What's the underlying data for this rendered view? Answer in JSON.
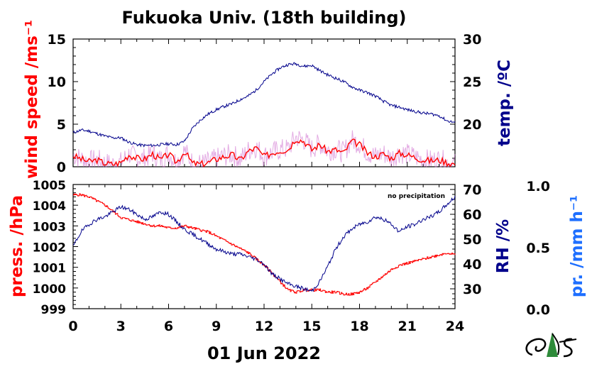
{
  "title": "Fukuoka Univ. (18th building)",
  "date_label": "01 Jun 2022",
  "note": "no precipitation",
  "colors": {
    "wind": "#ff0000",
    "wind_raw": "#cc66cc",
    "temp": "#00008b",
    "press": "#ff0000",
    "rh": "#00008b",
    "precip": "#1e6fff",
    "logo_green": "#2e8b3a"
  },
  "chart_data": [
    {
      "type": "line",
      "panel": "top",
      "x_ticks": [
        "0",
        "3",
        "6",
        "9",
        "12",
        "15",
        "18",
        "21",
        "24"
      ],
      "xlim": [
        0,
        24
      ],
      "left_axis": {
        "label": "wind speed /ms⁻¹",
        "ylim": [
          0,
          15
        ],
        "ticks": [
          "0",
          "5",
          "10",
          "15"
        ]
      },
      "right_axis": {
        "label": "temp. /ºC",
        "ylim": [
          15,
          30
        ],
        "ticks": [
          "20",
          "25",
          "30"
        ]
      },
      "series": [
        {
          "axis": "left",
          "color": "#ff0000",
          "x": [
            0,
            0.5,
            1,
            1.5,
            2,
            2.5,
            3,
            3.5,
            4,
            4.5,
            5,
            5.5,
            6,
            6.5,
            7,
            7.5,
            8,
            8.5,
            9,
            9.5,
            10,
            10.5,
            11,
            11.5,
            12,
            12.5,
            13,
            13.5,
            14,
            14.5,
            15,
            15.5,
            16,
            16.5,
            17,
            17.5,
            18,
            18.5,
            19,
            19.5,
            20,
            20.5,
            21,
            21.5,
            22,
            22.5,
            23,
            23.5,
            24
          ],
          "values": [
            1.3,
            0.9,
            0.6,
            0.8,
            0.4,
            0.3,
            0.5,
            1.4,
            1.0,
            0.9,
            1.5,
            0.8,
            1.5,
            0.5,
            1.8,
            0.4,
            0.3,
            0.5,
            0.9,
            1.2,
            1.4,
            0.8,
            1.8,
            2.2,
            1.2,
            1.6,
            1.9,
            2.0,
            3.3,
            3.0,
            2.0,
            2.6,
            1.8,
            2.0,
            1.6,
            3.0,
            2.6,
            1.6,
            1.2,
            1.5,
            1.0,
            1.6,
            1.4,
            1.1,
            0.8,
            0.7,
            0.8,
            0.5,
            0.3
          ]
        },
        {
          "axis": "right",
          "color": "#00008b",
          "x": [
            0,
            0.5,
            1,
            1.5,
            2,
            2.5,
            3,
            3.5,
            4,
            4.5,
            5,
            5.5,
            6,
            6.5,
            7,
            7.5,
            8,
            8.5,
            9,
            9.5,
            10,
            10.5,
            11,
            11.5,
            12,
            12.5,
            13,
            13.5,
            14,
            14.5,
            15,
            15.5,
            16,
            16.5,
            17,
            17.5,
            18,
            18.5,
            19,
            19.5,
            20,
            20.5,
            21,
            21.5,
            22,
            22.5,
            23,
            23.5,
            24
          ],
          "values": [
            19.0,
            19.3,
            19.2,
            18.9,
            18.6,
            18.4,
            18.4,
            17.9,
            17.6,
            17.5,
            17.5,
            17.6,
            17.7,
            17.6,
            18.0,
            19.5,
            20.5,
            21.2,
            21.7,
            22.1,
            22.4,
            22.9,
            23.3,
            24.0,
            25.0,
            25.9,
            26.6,
            27.0,
            27.1,
            26.8,
            26.9,
            26.3,
            25.8,
            25.4,
            25.0,
            24.4,
            24.0,
            23.7,
            23.3,
            22.7,
            22.2,
            22.0,
            21.7,
            21.5,
            21.3,
            21.2,
            21.0,
            20.4,
            20.2
          ]
        }
      ]
    },
    {
      "type": "line",
      "panel": "bottom",
      "x_ticks": [
        "0",
        "3",
        "6",
        "9",
        "12",
        "15",
        "18",
        "21",
        "24"
      ],
      "xlim": [
        0,
        24
      ],
      "left_axis": {
        "label": "press. /hPa",
        "ylim": [
          999,
          1005
        ],
        "ticks": [
          "999",
          "1000",
          "1001",
          "1002",
          "1003",
          "1004",
          "1005"
        ]
      },
      "right_axis": {
        "label": "RH /%",
        "ylim": [
          22,
          72
        ],
        "ticks": [
          "30",
          "40",
          "50",
          "60",
          "70"
        ]
      },
      "extra_axis": {
        "label": "pr. /mm h⁻¹",
        "ylim": [
          0,
          1
        ],
        "ticks": [
          "0.0",
          "0.5",
          "1.0"
        ]
      },
      "series": [
        {
          "axis": "left",
          "color": "#ff0000",
          "x": [
            0,
            0.5,
            1,
            1.5,
            2,
            2.5,
            3,
            3.5,
            4,
            4.5,
            5,
            5.5,
            6,
            6.5,
            7,
            7.5,
            8,
            8.5,
            9,
            9.5,
            10,
            10.5,
            11,
            11.5,
            12,
            12.5,
            13,
            13.5,
            14,
            14.5,
            15,
            15.5,
            16,
            16.5,
            17,
            17.5,
            18,
            18.5,
            19,
            19.5,
            20,
            20.5,
            21,
            21.5,
            22,
            22.5,
            23,
            23.5,
            24
          ],
          "values": [
            1004.5,
            1004.5,
            1004.4,
            1004.2,
            1004.0,
            1003.7,
            1003.4,
            1003.3,
            1003.2,
            1003.1,
            1003.0,
            1003.0,
            1002.9,
            1002.9,
            1003.0,
            1002.9,
            1002.8,
            1002.7,
            1002.5,
            1002.3,
            1002.1,
            1001.9,
            1001.7,
            1001.4,
            1001.1,
            1000.7,
            1000.3,
            999.9,
            999.8,
            999.9,
            999.9,
            999.9,
            999.8,
            999.8,
            999.7,
            999.7,
            999.8,
            1000.0,
            1000.3,
            1000.6,
            1000.9,
            1001.1,
            1001.2,
            1001.3,
            1001.4,
            1001.5,
            1001.6,
            1001.7,
            1001.6
          ]
        },
        {
          "axis": "right",
          "color": "#00008b",
          "x": [
            0,
            0.5,
            1,
            1.5,
            2,
            2.5,
            3,
            3.5,
            4,
            4.5,
            5,
            5.5,
            6,
            6.5,
            7,
            7.5,
            8,
            8.5,
            9,
            9.5,
            10,
            10.5,
            11,
            11.5,
            12,
            12.5,
            13,
            13.5,
            14,
            14.5,
            15,
            15.5,
            16,
            16.5,
            17,
            17.5,
            18,
            18.5,
            19,
            19.5,
            20,
            20.5,
            21,
            21.5,
            22,
            22.5,
            23,
            23.5,
            24
          ],
          "values": [
            47,
            53,
            56,
            58,
            59,
            61,
            63,
            62,
            60,
            58,
            59,
            61,
            60,
            57,
            54,
            52,
            50,
            48,
            46,
            45,
            44,
            44,
            43,
            42,
            40,
            36,
            34,
            32,
            31,
            30,
            29,
            33,
            39,
            46,
            51,
            54,
            56,
            57,
            59,
            58,
            56,
            53,
            55,
            56,
            58,
            59,
            61,
            64,
            67
          ]
        }
      ]
    }
  ]
}
